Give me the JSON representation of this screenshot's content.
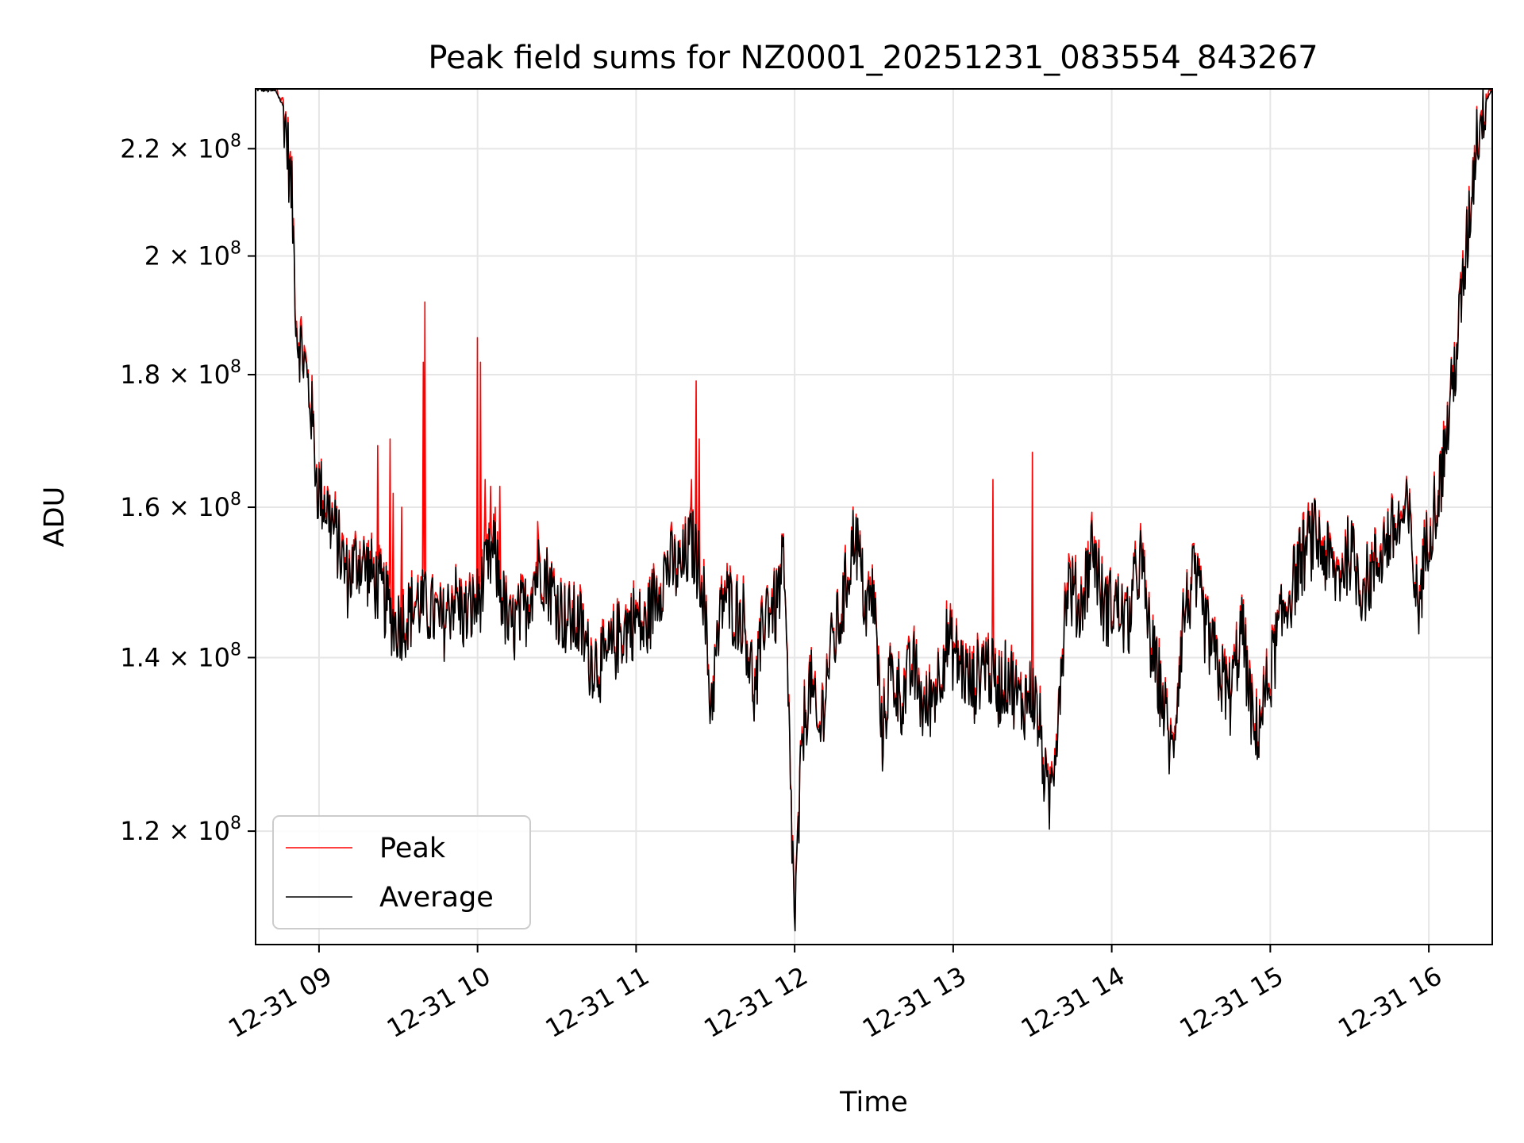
{
  "chart_data": {
    "type": "line",
    "title": "Peak field sums for NZ0001_20251231_083554_843267",
    "xlabel": "Time",
    "ylabel": "ADU",
    "y_scale": "log",
    "xlim_hours": [
      8.6,
      16.4
    ],
    "ylim": [
      108500000,
      232000000
    ],
    "grid": true,
    "legend_position": "lower-left",
    "x_ticks": [
      {
        "value": 9,
        "label": "12-31 09"
      },
      {
        "value": 10,
        "label": "12-31 10"
      },
      {
        "value": 11,
        "label": "12-31 11"
      },
      {
        "value": 12,
        "label": "12-31 12"
      },
      {
        "value": 13,
        "label": "12-31 13"
      },
      {
        "value": 14,
        "label": "12-31 14"
      },
      {
        "value": 15,
        "label": "12-31 15"
      },
      {
        "value": 16,
        "label": "12-31 16"
      }
    ],
    "y_ticks": [
      {
        "value": 120000000,
        "mantissa": "1.2",
        "exponent": "8"
      },
      {
        "value": 140000000,
        "mantissa": "1.4",
        "exponent": "8"
      },
      {
        "value": 160000000,
        "mantissa": "1.6",
        "exponent": "8"
      },
      {
        "value": 180000000,
        "mantissa": "1.8",
        "exponent": "8"
      },
      {
        "value": 200000000,
        "mantissa": "2",
        "exponent": "8"
      },
      {
        "value": 220000000,
        "mantissa": "2.2",
        "exponent": "8"
      }
    ],
    "times_label_unit": "hours (12-31)",
    "average_anchors": [
      [
        8.6,
        232000000
      ],
      [
        8.73,
        231500000
      ],
      [
        8.78,
        228000000
      ],
      [
        8.83,
        210000000
      ],
      [
        8.86,
        187000000
      ],
      [
        8.9,
        183000000
      ],
      [
        8.95,
        175000000
      ],
      [
        8.99,
        163000000
      ],
      [
        9.05,
        160000000
      ],
      [
        9.12,
        155000000
      ],
      [
        9.18,
        150000000
      ],
      [
        9.25,
        153000000
      ],
      [
        9.32,
        151000000
      ],
      [
        9.4,
        148000000
      ],
      [
        9.48,
        144000000
      ],
      [
        9.55,
        145000000
      ],
      [
        9.62,
        147000000
      ],
      [
        9.7,
        146000000
      ],
      [
        9.78,
        144000000
      ],
      [
        9.85,
        148000000
      ],
      [
        9.92,
        145000000
      ],
      [
        10.0,
        147000000
      ],
      [
        10.1,
        154000000
      ],
      [
        10.2,
        143000000
      ],
      [
        10.3,
        146000000
      ],
      [
        10.35,
        150000000
      ],
      [
        10.4,
        152000000
      ],
      [
        10.48,
        148000000
      ],
      [
        10.55,
        145000000
      ],
      [
        10.65,
        144000000
      ],
      [
        10.7,
        140000000
      ],
      [
        10.8,
        139000000
      ],
      [
        10.9,
        143000000
      ],
      [
        11.0,
        145000000
      ],
      [
        11.05,
        143000000
      ],
      [
        11.12,
        148000000
      ],
      [
        11.2,
        152000000
      ],
      [
        11.28,
        151000000
      ],
      [
        11.35,
        155000000
      ],
      [
        11.42,
        150000000
      ],
      [
        11.47,
        134000000
      ],
      [
        11.55,
        148000000
      ],
      [
        11.62,
        146000000
      ],
      [
        11.68,
        145000000
      ],
      [
        11.75,
        135000000
      ],
      [
        11.82,
        147000000
      ],
      [
        11.88,
        146000000
      ],
      [
        11.93,
        152000000
      ],
      [
        11.97,
        128000000
      ],
      [
        12.0,
        110000000
      ],
      [
        12.05,
        131000000
      ],
      [
        12.1,
        137000000
      ],
      [
        12.15,
        130000000
      ],
      [
        12.22,
        140000000
      ],
      [
        12.3,
        146000000
      ],
      [
        12.38,
        157000000
      ],
      [
        12.45,
        146000000
      ],
      [
        12.5,
        148000000
      ],
      [
        12.55,
        130000000
      ],
      [
        12.6,
        138000000
      ],
      [
        12.68,
        135000000
      ],
      [
        12.75,
        139000000
      ],
      [
        12.82,
        133000000
      ],
      [
        12.9,
        137000000
      ],
      [
        12.96,
        142000000
      ],
      [
        13.05,
        139000000
      ],
      [
        13.12,
        136000000
      ],
      [
        13.2,
        140000000
      ],
      [
        13.28,
        136000000
      ],
      [
        13.35,
        138000000
      ],
      [
        13.42,
        134000000
      ],
      [
        13.5,
        136000000
      ],
      [
        13.55,
        131000000
      ],
      [
        13.6,
        122000000
      ],
      [
        13.65,
        131000000
      ],
      [
        13.72,
        150000000
      ],
      [
        13.8,
        146000000
      ],
      [
        13.88,
        155000000
      ],
      [
        13.95,
        146000000
      ],
      [
        14.02,
        147000000
      ],
      [
        14.1,
        144000000
      ],
      [
        14.18,
        153000000
      ],
      [
        14.25,
        141000000
      ],
      [
        14.32,
        135000000
      ],
      [
        14.38,
        128000000
      ],
      [
        14.45,
        145000000
      ],
      [
        14.52,
        150000000
      ],
      [
        14.6,
        143000000
      ],
      [
        14.68,
        138000000
      ],
      [
        14.75,
        135000000
      ],
      [
        14.82,
        144000000
      ],
      [
        14.9,
        130000000
      ],
      [
        14.98,
        136000000
      ],
      [
        15.05,
        143000000
      ],
      [
        15.12,
        148000000
      ],
      [
        15.2,
        153000000
      ],
      [
        15.28,
        156000000
      ],
      [
        15.35,
        153000000
      ],
      [
        15.42,
        150000000
      ],
      [
        15.5,
        154000000
      ],
      [
        15.58,
        149000000
      ],
      [
        15.65,
        151000000
      ],
      [
        15.72,
        155000000
      ],
      [
        15.8,
        157000000
      ],
      [
        15.87,
        159000000
      ],
      [
        15.93,
        146000000
      ],
      [
        16.0,
        157000000
      ],
      [
        16.07,
        163000000
      ],
      [
        16.12,
        172000000
      ],
      [
        16.18,
        185000000
      ],
      [
        16.25,
        205000000
      ],
      [
        16.3,
        222000000
      ],
      [
        16.35,
        229000000
      ],
      [
        16.4,
        232000000
      ]
    ],
    "peak_spikes": [
      [
        9.37,
        169000000
      ],
      [
        9.45,
        170000000
      ],
      [
        9.47,
        162000000
      ],
      [
        9.52,
        160000000
      ],
      [
        9.66,
        182000000
      ],
      [
        9.67,
        192000000
      ],
      [
        10.0,
        186000000
      ],
      [
        10.02,
        182000000
      ],
      [
        10.05,
        164000000
      ],
      [
        10.08,
        163000000
      ],
      [
        10.11,
        160000000
      ],
      [
        10.14,
        163000000
      ],
      [
        10.38,
        158000000
      ],
      [
        11.35,
        164000000
      ],
      [
        11.38,
        179000000
      ],
      [
        11.4,
        170000000
      ],
      [
        13.25,
        164000000
      ],
      [
        13.5,
        168000000
      ]
    ],
    "series": [
      {
        "name": "Peak",
        "color": "#ff0000"
      },
      {
        "name": "Average",
        "color": "#000000"
      }
    ]
  }
}
